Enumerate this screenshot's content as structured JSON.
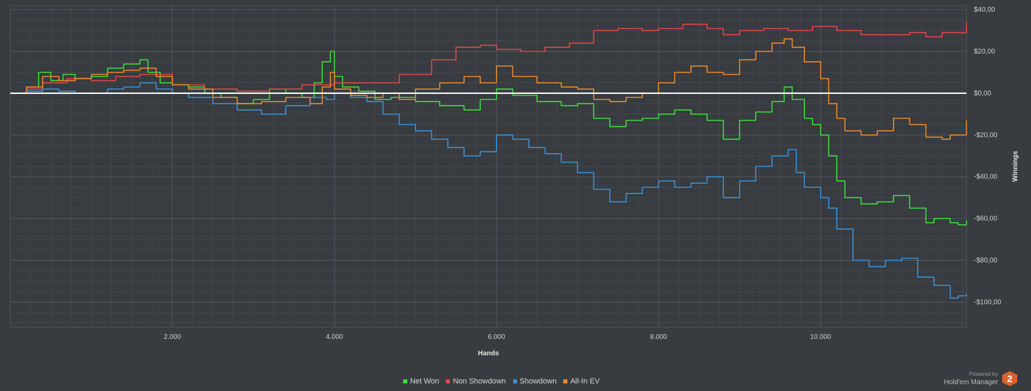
{
  "chart_data": {
    "type": "line",
    "xlabel": "Hands",
    "ylabel": "Winnings",
    "xlim": [
      0,
      11800
    ],
    "ylim": [
      -112,
      42
    ],
    "x_ticks": [
      {
        "value": 2000,
        "label": "2.000"
      },
      {
        "value": 4000,
        "label": "4.000"
      },
      {
        "value": 6000,
        "label": "6.000"
      },
      {
        "value": 8000,
        "label": "8.000"
      },
      {
        "value": 10000,
        "label": "10.000"
      }
    ],
    "y_ticks": [
      {
        "value": 40,
        "label": "$40,00"
      },
      {
        "value": 20,
        "label": "$20,00"
      },
      {
        "value": 0,
        "label": "$0,00"
      },
      {
        "value": -20,
        "label": "-$20,00"
      },
      {
        "value": -40,
        "label": "-$40,00"
      },
      {
        "value": -60,
        "label": "-$60,00"
      },
      {
        "value": -80,
        "label": "-$80,00"
      },
      {
        "value": -100,
        "label": "-$100,00"
      }
    ],
    "grid": true,
    "zero_line": true,
    "legend_position": "bottom-center",
    "series": [
      {
        "name": "Net Won",
        "color": "#3ddc3d",
        "x": [
          0,
          200,
          350,
          500,
          650,
          800,
          1000,
          1200,
          1400,
          1600,
          1700,
          1850,
          2000,
          2200,
          2400,
          2600,
          2800,
          3000,
          3200,
          3400,
          3600,
          3750,
          3850,
          3950,
          4000,
          4100,
          4300,
          4500,
          4700,
          5000,
          5300,
          5600,
          5800,
          6000,
          6200,
          6500,
          6800,
          7000,
          7200,
          7400,
          7600,
          7800,
          8000,
          8200,
          8400,
          8600,
          8800,
          9000,
          9200,
          9400,
          9550,
          9650,
          9800,
          9900,
          10000,
          10100,
          10200,
          10300,
          10500,
          10700,
          10900,
          11100,
          11300,
          11400,
          11600,
          11700,
          11800
        ],
        "y": [
          0,
          3,
          10,
          6,
          9,
          7,
          8,
          12,
          14,
          16,
          10,
          5,
          4,
          3,
          0,
          -2,
          -5,
          -3,
          2,
          0,
          -2,
          5,
          15,
          20,
          8,
          3,
          1,
          -3,
          -2,
          -4,
          -6,
          -8,
          -3,
          2,
          -1,
          -4,
          -6,
          -5,
          -12,
          -16,
          -13,
          -12,
          -10,
          -8,
          -10,
          -13,
          -22,
          -13,
          -9,
          -4,
          3,
          -3,
          -12,
          -15,
          -20,
          -30,
          -42,
          -50,
          -53,
          -52,
          -49,
          -55,
          -62,
          -60,
          -62,
          -63,
          -61
        ]
      },
      {
        "name": "Non Showdown",
        "color": "#e04848",
        "x": [
          0,
          200,
          400,
          700,
          1000,
          1300,
          1600,
          2000,
          2400,
          2800,
          3200,
          3600,
          4000,
          4400,
          4800,
          5200,
          5500,
          5800,
          6000,
          6300,
          6600,
          6900,
          7200,
          7500,
          7800,
          8000,
          8300,
          8600,
          8800,
          9000,
          9300,
          9600,
          9900,
          10200,
          10500,
          10800,
          11100,
          11300,
          11500,
          11800
        ],
        "y": [
          0,
          2,
          5,
          7,
          6,
          8,
          9,
          4,
          2,
          1,
          2,
          4,
          5,
          5,
          9,
          16,
          22,
          23,
          21,
          20,
          22,
          24,
          30,
          31,
          30,
          31,
          33,
          31,
          28,
          30,
          31,
          30,
          32,
          30,
          28,
          28,
          29,
          27,
          29,
          34
        ]
      },
      {
        "name": "Showdown",
        "color": "#3a90d4",
        "x": [
          0,
          200,
          400,
          600,
          800,
          1000,
          1200,
          1400,
          1600,
          1800,
          2000,
          2200,
          2500,
          2800,
          3100,
          3400,
          3700,
          3900,
          4000,
          4200,
          4400,
          4600,
          4800,
          5000,
          5200,
          5400,
          5600,
          5800,
          6000,
          6200,
          6400,
          6600,
          6800,
          7000,
          7200,
          7400,
          7600,
          7800,
          8000,
          8200,
          8400,
          8600,
          8800,
          9000,
          9200,
          9400,
          9600,
          9700,
          9800,
          10000,
          10100,
          10200,
          10400,
          10600,
          10800,
          11000,
          11200,
          11400,
          11600,
          11700,
          11800
        ],
        "y": [
          0,
          1,
          2,
          1,
          0,
          0,
          2,
          3,
          5,
          2,
          0,
          -2,
          -5,
          -8,
          -10,
          -6,
          -2,
          -3,
          0,
          -2,
          -4,
          -10,
          -15,
          -18,
          -22,
          -26,
          -30,
          -28,
          -20,
          -22,
          -26,
          -29,
          -33,
          -38,
          -46,
          -52,
          -48,
          -45,
          -42,
          -45,
          -43,
          -40,
          -50,
          -42,
          -35,
          -30,
          -27,
          -38,
          -45,
          -50,
          -55,
          -65,
          -80,
          -83,
          -80,
          -79,
          -88,
          -92,
          -98,
          -97,
          -96
        ]
      },
      {
        "name": "All-In EV",
        "color": "#e88a2f",
        "x": [
          0,
          200,
          400,
          600,
          800,
          1000,
          1200,
          1400,
          1600,
          1800,
          2000,
          2200,
          2500,
          2800,
          3100,
          3400,
          3700,
          3850,
          3950,
          4000,
          4200,
          4400,
          4600,
          4800,
          5000,
          5300,
          5600,
          5800,
          6000,
          6200,
          6500,
          6800,
          7000,
          7200,
          7400,
          7600,
          7800,
          8000,
          8200,
          8400,
          8600,
          8800,
          9000,
          9200,
          9400,
          9550,
          9650,
          9800,
          10000,
          10100,
          10200,
          10300,
          10500,
          10700,
          10900,
          11100,
          11300,
          11500,
          11600,
          11800
        ],
        "y": [
          0,
          3,
          8,
          6,
          7,
          9,
          10,
          11,
          12,
          8,
          4,
          2,
          -2,
          -5,
          -4,
          -2,
          -5,
          3,
          10,
          2,
          -1,
          -2,
          0,
          -3,
          2,
          5,
          8,
          5,
          13,
          8,
          5,
          3,
          2,
          -3,
          -4,
          -2,
          0,
          5,
          10,
          13,
          10,
          9,
          16,
          20,
          24,
          26,
          22,
          15,
          7,
          -5,
          -12,
          -18,
          -20,
          -18,
          -12,
          -15,
          -21,
          -22,
          -20,
          -13
        ]
      }
    ]
  },
  "branding": {
    "powered_by": "Powered by",
    "product": "Hold'em Manager",
    "logo_digit": "2"
  }
}
